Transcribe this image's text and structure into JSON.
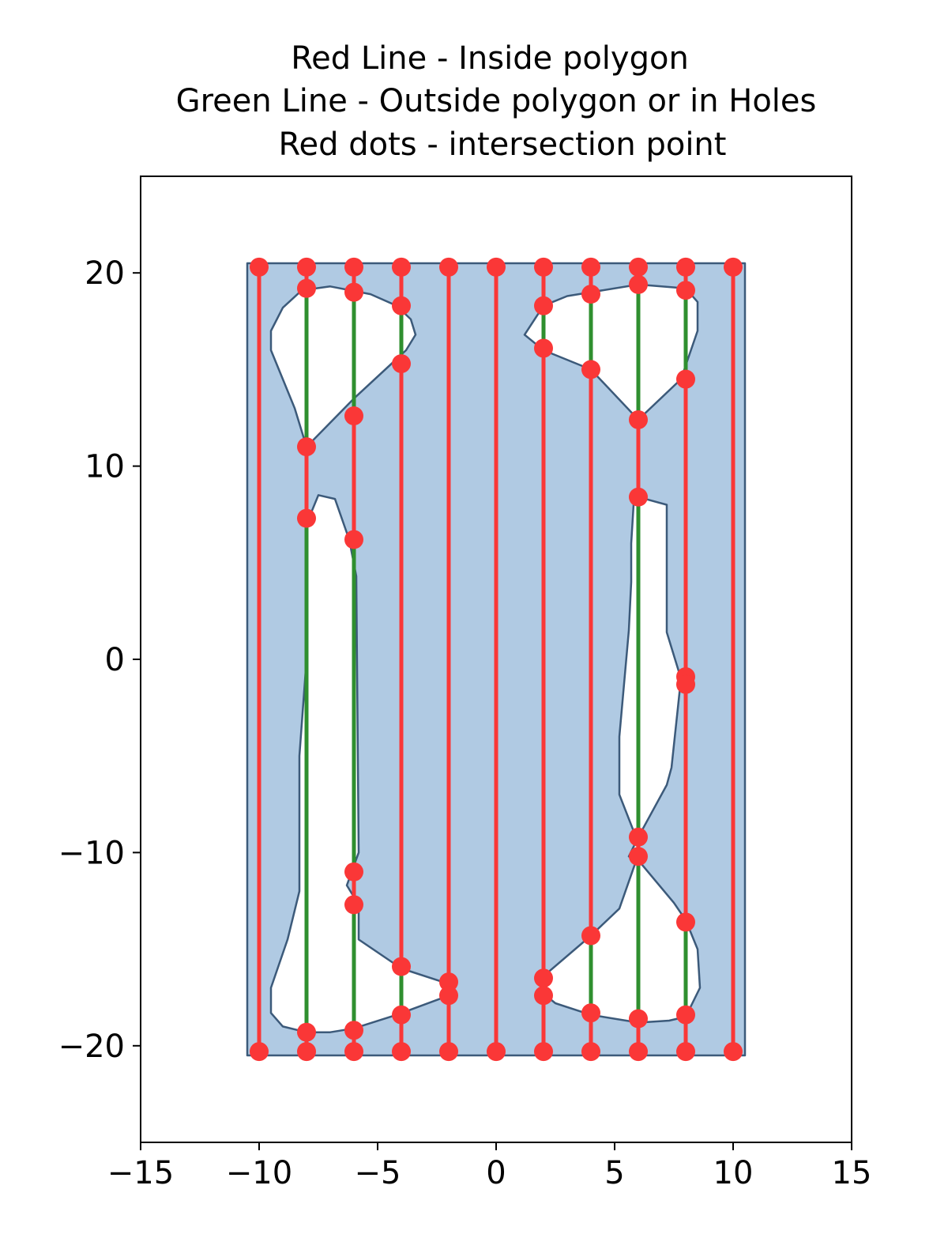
{
  "chart_data": {
    "type": "line",
    "title_lines": [
      "Red Line - Inside polygon",
      "Green Line - Outside polygon or in Holes",
      "Red dots - intersection point"
    ],
    "xlim": [
      -15,
      15
    ],
    "ylim": [
      -25,
      25
    ],
    "x_ticks": [
      -15,
      -10,
      -5,
      0,
      5,
      10,
      15
    ],
    "y_ticks": [
      -20,
      -10,
      0,
      10,
      20
    ],
    "x_tick_labels": [
      "−15",
      "−10",
      "−5",
      "0",
      "5",
      "10",
      "15"
    ],
    "y_tick_labels": [
      "−20",
      "−10",
      "0",
      "10",
      "20"
    ],
    "grid": false,
    "colors": {
      "polygon_fill": "#b0cae3",
      "polygon_edge": "#3c5a7a",
      "inside_line": "#fa3737",
      "outside_line": "#2f8f2f",
      "dot": "#fa3737"
    },
    "polygon": {
      "outer": [
        [
          -10.5,
          -20.5
        ],
        [
          10.5,
          -20.5
        ],
        [
          10.5,
          20.5
        ],
        [
          -10.5,
          20.5
        ]
      ],
      "holes": [
        [
          [
            -9.5,
            17
          ],
          [
            -9,
            18.2
          ],
          [
            -8.2,
            19.1
          ],
          [
            -7,
            19.3
          ],
          [
            -5.3,
            18.9
          ],
          [
            -4.2,
            18.3
          ],
          [
            -3.6,
            17.6
          ],
          [
            -3.4,
            16.8
          ],
          [
            -3.8,
            16
          ],
          [
            -6,
            13.5
          ],
          [
            -8,
            11
          ],
          [
            -8.5,
            13
          ],
          [
            -9,
            14.5
          ],
          [
            -9.5,
            16
          ]
        ],
        [
          [
            -7.5,
            8.5
          ],
          [
            -6.8,
            8.3
          ],
          [
            -6.2,
            6.2
          ],
          [
            -5.9,
            4.3
          ],
          [
            -5.8,
            -10
          ],
          [
            -6.3,
            -11.7
          ],
          [
            -5.8,
            -12.7
          ],
          [
            -5.8,
            -14.5
          ],
          [
            -4,
            -16
          ],
          [
            -2,
            -16.8
          ],
          [
            -2,
            -17.4
          ],
          [
            -4.2,
            -18.4
          ],
          [
            -6,
            -19.1
          ],
          [
            -7,
            -19.3
          ],
          [
            -8,
            -19.3
          ],
          [
            -9,
            -19
          ],
          [
            -9.5,
            -18.3
          ],
          [
            -9.5,
            -17
          ],
          [
            -8.8,
            -14.5
          ],
          [
            -8.3,
            -12
          ],
          [
            -8.3,
            -5
          ],
          [
            -8,
            0
          ],
          [
            -8,
            7
          ]
        ],
        [
          [
            1.2,
            16.8
          ],
          [
            2,
            18.3
          ],
          [
            3,
            18.8
          ],
          [
            4,
            19
          ],
          [
            6,
            19.4
          ],
          [
            8,
            19.2
          ],
          [
            8.5,
            18.5
          ],
          [
            8.5,
            17
          ],
          [
            7.8,
            14.5
          ],
          [
            6,
            12.4
          ],
          [
            4,
            15
          ],
          [
            2,
            16
          ],
          [
            1.4,
            16.6
          ]
        ],
        [
          [
            6,
            8.4
          ],
          [
            7.2,
            8
          ],
          [
            7.2,
            1.4
          ],
          [
            7.8,
            -1
          ],
          [
            7.4,
            -5.6
          ],
          [
            7.2,
            -6.5
          ],
          [
            6,
            -9.2
          ],
          [
            5.6,
            -10.2
          ],
          [
            6,
            -10.4
          ],
          [
            7.5,
            -12.6
          ],
          [
            8,
            -13.5
          ],
          [
            8.5,
            -15
          ],
          [
            8.6,
            -17
          ],
          [
            8,
            -18.5
          ],
          [
            7.3,
            -18.7
          ],
          [
            6,
            -18.8
          ],
          [
            4,
            -18.4
          ],
          [
            2.5,
            -17.8
          ],
          [
            2,
            -17.3
          ],
          [
            2,
            -16.4
          ],
          [
            4,
            -14.3
          ],
          [
            5.2,
            -12.9
          ],
          [
            6,
            -10.1
          ],
          [
            5.9,
            -9.2
          ],
          [
            5.2,
            -7
          ],
          [
            5.2,
            -4
          ],
          [
            5.6,
            1.5
          ],
          [
            5.7,
            4
          ],
          [
            5.7,
            6
          ],
          [
            5.8,
            8
          ]
        ]
      ]
    },
    "lines": [
      {
        "x": -10,
        "inside": [
          [
            -20.3,
            20.3
          ]
        ],
        "outside": []
      },
      {
        "x": -8,
        "inside": [
          [
            -20.3,
            -19.3
          ],
          [
            7.3,
            11
          ],
          [
            19.2,
            20.3
          ]
        ],
        "outside": [
          [
            -19.3,
            7.3
          ],
          [
            11,
            19.2
          ]
        ]
      },
      {
        "x": -6,
        "inside": [
          [
            -20.3,
            -19.2
          ],
          [
            -12.7,
            -11
          ],
          [
            6.2,
            12.6
          ],
          [
            19,
            20.3
          ]
        ],
        "outside": [
          [
            -19.2,
            -12.7
          ],
          [
            -11,
            6.2
          ],
          [
            12.6,
            19
          ]
        ]
      },
      {
        "x": -4,
        "inside": [
          [
            -20.3,
            -18.4
          ],
          [
            -15.9,
            15.3
          ],
          [
            18.3,
            20.3
          ]
        ],
        "outside": [
          [
            -18.4,
            -15.9
          ],
          [
            15.3,
            18.3
          ]
        ]
      },
      {
        "x": -2,
        "inside": [
          [
            -20.3,
            -17.4
          ],
          [
            -16.7,
            20.3
          ]
        ],
        "outside": [
          [
            -17.4,
            -16.7
          ]
        ]
      },
      {
        "x": 0,
        "inside": [
          [
            -20.3,
            20.3
          ]
        ],
        "outside": []
      },
      {
        "x": 2,
        "inside": [
          [
            -20.3,
            -17.4
          ],
          [
            -16.5,
            16.1
          ],
          [
            18.3,
            20.3
          ]
        ],
        "outside": [
          [
            -17.4,
            -16.5
          ],
          [
            16.1,
            18.3
          ]
        ]
      },
      {
        "x": 4,
        "inside": [
          [
            -20.3,
            -18.3
          ],
          [
            -14.3,
            15
          ],
          [
            18.9,
            20.3
          ]
        ],
        "outside": [
          [
            -18.3,
            -14.3
          ],
          [
            15,
            18.9
          ]
        ]
      },
      {
        "x": 6,
        "inside": [
          [
            -20.3,
            -18.6
          ],
          [
            -10.2,
            -9.2
          ],
          [
            8.4,
            12.4
          ],
          [
            19.4,
            20.3
          ]
        ],
        "outside": [
          [
            -18.6,
            -10.2
          ],
          [
            -9.2,
            8.4
          ],
          [
            12.4,
            19.4
          ]
        ]
      },
      {
        "x": 8,
        "inside": [
          [
            -20.3,
            -18.4
          ],
          [
            -13.6,
            -1.3
          ],
          [
            -0.9,
            14.5
          ],
          [
            19.1,
            20.3
          ]
        ],
        "outside": [
          [
            -18.4,
            -13.6
          ],
          [
            -1.3,
            -0.9
          ],
          [
            14.5,
            19.1
          ]
        ]
      },
      {
        "x": 10,
        "inside": [
          [
            -20.3,
            20.3
          ]
        ],
        "outside": []
      }
    ],
    "intersection_points": [
      [
        -10,
        20.3
      ],
      [
        -10,
        -20.3
      ],
      [
        -8,
        20.3
      ],
      [
        -8,
        19.2
      ],
      [
        -8,
        11
      ],
      [
        -8,
        7.3
      ],
      [
        -8,
        -19.3
      ],
      [
        -8,
        -20.3
      ],
      [
        -6,
        20.3
      ],
      [
        -6,
        19
      ],
      [
        -6,
        12.6
      ],
      [
        -6,
        6.2
      ],
      [
        -6,
        -11
      ],
      [
        -6,
        -12.7
      ],
      [
        -6,
        -19.2
      ],
      [
        -6,
        -20.3
      ],
      [
        -4,
        20.3
      ],
      [
        -4,
        18.3
      ],
      [
        -4,
        15.3
      ],
      [
        -4,
        -15.9
      ],
      [
        -4,
        -18.4
      ],
      [
        -4,
        -20.3
      ],
      [
        -2,
        20.3
      ],
      [
        -2,
        -16.7
      ],
      [
        -2,
        -17.4
      ],
      [
        -2,
        -20.3
      ],
      [
        0,
        20.3
      ],
      [
        0,
        -20.3
      ],
      [
        2,
        20.3
      ],
      [
        2,
        18.3
      ],
      [
        2,
        16.1
      ],
      [
        2,
        -16.5
      ],
      [
        2,
        -17.4
      ],
      [
        2,
        -20.3
      ],
      [
        4,
        20.3
      ],
      [
        4,
        18.9
      ],
      [
        4,
        15
      ],
      [
        4,
        -14.3
      ],
      [
        4,
        -18.3
      ],
      [
        4,
        -20.3
      ],
      [
        6,
        20.3
      ],
      [
        6,
        19.4
      ],
      [
        6,
        12.4
      ],
      [
        6,
        8.4
      ],
      [
        6,
        -9.2
      ],
      [
        6,
        -10.2
      ],
      [
        6,
        -18.6
      ],
      [
        6,
        -20.3
      ],
      [
        8,
        20.3
      ],
      [
        8,
        19.1
      ],
      [
        8,
        14.5
      ],
      [
        8,
        -0.9
      ],
      [
        8,
        -1.3
      ],
      [
        8,
        -13.6
      ],
      [
        8,
        -18.4
      ],
      [
        8,
        -20.3
      ],
      [
        10,
        20.3
      ],
      [
        10,
        -20.3
      ]
    ]
  }
}
